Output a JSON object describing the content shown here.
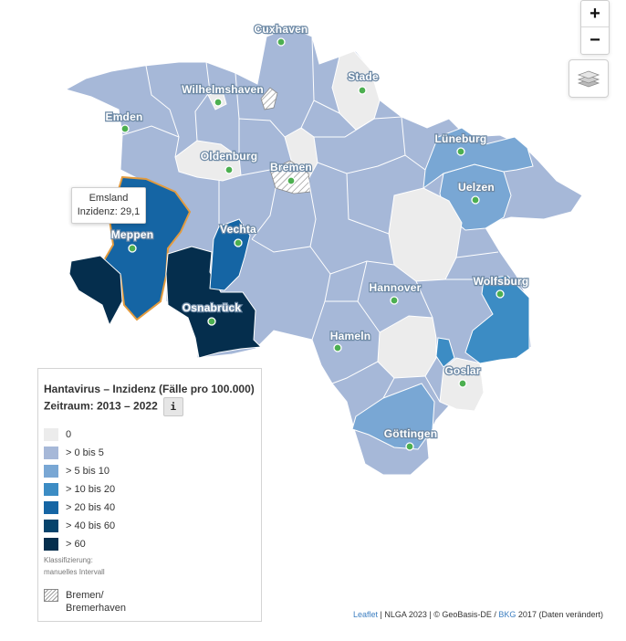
{
  "map": {
    "tooltip": {
      "title": "Emsland",
      "value": "Inzidenz: 29,1"
    },
    "cities": [
      {
        "name": "Cuxhaven"
      },
      {
        "name": "Stade"
      },
      {
        "name": "Wilhelmshaven"
      },
      {
        "name": "Emden"
      },
      {
        "name": "Lüneburg"
      },
      {
        "name": "Oldenburg"
      },
      {
        "name": "Bremen"
      },
      {
        "name": "Uelzen"
      },
      {
        "name": "Meppen"
      },
      {
        "name": "Vechta"
      },
      {
        "name": "Hannover"
      },
      {
        "name": "Wolfsburg"
      },
      {
        "name": "Osnabrück"
      },
      {
        "name": "Hameln"
      },
      {
        "name": "Goslar"
      },
      {
        "name": "Göttingen"
      }
    ],
    "colors": {
      "class_0": "#ececec",
      "class_1": "#a6b8d8",
      "class_2": "#79a7d4",
      "class_3": "#3c8cc4",
      "class_4": "#1565a4",
      "class_5": "#06436c",
      "class_6": "#052e4d",
      "highlight": "#e39b3e",
      "marker": "#4caf50"
    }
  },
  "controls": {
    "zoom_in": "+",
    "zoom_out": "−",
    "layers_icon": "layers-icon"
  },
  "legend": {
    "title": "Hantavirus – Inzidenz (Fälle pro 100.000)",
    "period": "Zeitraum: 2013 – 2022",
    "info_label": "i",
    "items": [
      {
        "label": "0",
        "color": "#ececec"
      },
      {
        "label": "> 0 bis 5",
        "color": "#a6b8d8"
      },
      {
        "label": "> 5 bis 10",
        "color": "#79a7d4"
      },
      {
        "label": "> 10 bis 20",
        "color": "#3c8cc4"
      },
      {
        "label": "> 20 bis 40",
        "color": "#1565a4"
      },
      {
        "label": "> 40 bis 60",
        "color": "#06436c"
      },
      {
        "label": "> 60",
        "color": "#052e4d"
      }
    ],
    "note_line1": "Klassifizierung:",
    "note_line2": "manuelles Intervall",
    "bremen_line1": "Bremen/",
    "bremen_line2": "Bremerhaven"
  },
  "attribution": {
    "leaflet": "Leaflet",
    "sep1": " | NLGA 2023 | © GeoBasis-DE / ",
    "bkg": "BKG",
    "rest": " 2017 (Daten verändert)"
  }
}
